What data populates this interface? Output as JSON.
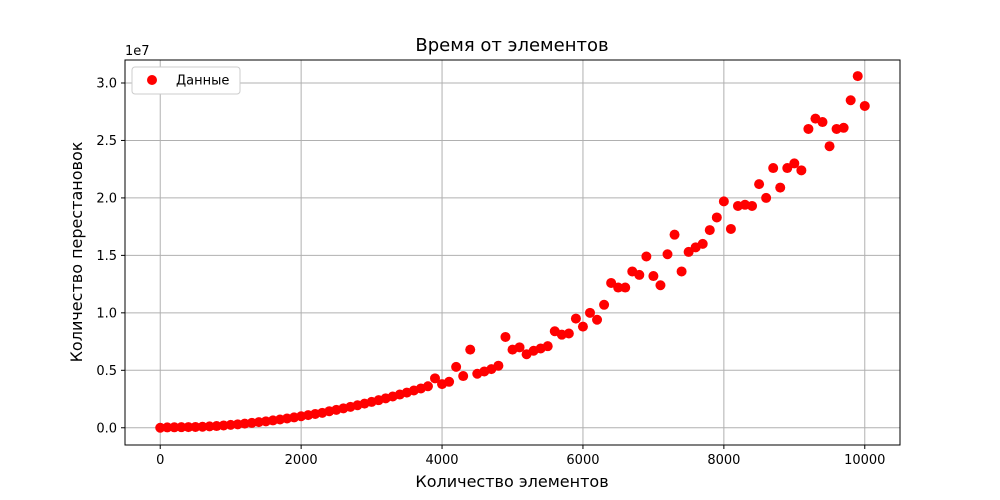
{
  "chart_data": {
    "type": "scatter",
    "title": "Время от элементов",
    "xlabel": "Количество элементов",
    "ylabel": "Количество перестановок",
    "y_scale_label": "1e7",
    "xlim": [
      -500,
      10500
    ],
    "ylim": [
      -1.5,
      32.0
    ],
    "x_ticks": [
      0,
      2000,
      4000,
      6000,
      8000,
      10000
    ],
    "x_tick_labels": [
      "0",
      "2000",
      "4000",
      "6000",
      "8000",
      "10000"
    ],
    "y_ticks": [
      0.0,
      5.0,
      10.0,
      15.0,
      20.0,
      25.0,
      30.0
    ],
    "y_tick_labels": [
      "0.0",
      "0.5",
      "1.0",
      "1.5",
      "2.0",
      "2.5",
      "3.0"
    ],
    "grid": true,
    "legend_position": "top-left",
    "colors": {
      "points": "#ff0000",
      "grid": "#b0b0b0",
      "axes": "#000000"
    },
    "series": [
      {
        "name": "Данные",
        "x": [
          0,
          100,
          200,
          300,
          400,
          500,
          600,
          700,
          800,
          900,
          1000,
          1100,
          1200,
          1300,
          1400,
          1500,
          1600,
          1700,
          1800,
          1900,
          2000,
          2100,
          2200,
          2300,
          2400,
          2500,
          2600,
          2700,
          2800,
          2900,
          3000,
          3100,
          3200,
          3300,
          3400,
          3500,
          3600,
          3700,
          3800,
          3900,
          4000,
          4100,
          4200,
          4300,
          4400,
          4500,
          4600,
          4700,
          4800,
          4900,
          5000,
          5100,
          5200,
          5300,
          5400,
          5500,
          5600,
          5700,
          5800,
          5900,
          6000,
          6100,
          6200,
          6300,
          6400,
          6500,
          6600,
          6700,
          6800,
          6900,
          7000,
          7100,
          7200,
          7300,
          7400,
          7500,
          7600,
          7700,
          7800,
          7900,
          8000,
          8100,
          8200,
          8300,
          8400,
          8500,
          8600,
          8700,
          8800,
          8900,
          9000,
          9100,
          9200,
          9300,
          9400,
          9500,
          9600,
          9700,
          9800,
          9900,
          10000
        ],
        "y": [
          0.0,
          0.03,
          0.04,
          0.05,
          0.06,
          0.07,
          0.09,
          0.12,
          0.15,
          0.2,
          0.25,
          0.3,
          0.36,
          0.42,
          0.49,
          0.56,
          0.64,
          0.72,
          0.81,
          0.9,
          1.0,
          1.1,
          1.2,
          1.3,
          1.44,
          1.56,
          1.69,
          1.82,
          1.96,
          2.1,
          2.25,
          2.4,
          2.56,
          2.72,
          2.89,
          3.06,
          3.24,
          3.42,
          3.61,
          4.3,
          3.8,
          4.0,
          5.3,
          4.5,
          6.8,
          4.7,
          4.9,
          5.1,
          5.4,
          7.9,
          6.8,
          7.0,
          6.4,
          6.7,
          6.9,
          7.1,
          8.4,
          8.1,
          8.2,
          9.5,
          8.8,
          10.0,
          9.4,
          10.7,
          12.6,
          12.2,
          12.2,
          13.6,
          13.3,
          14.9,
          13.2,
          12.4,
          15.1,
          16.8,
          13.6,
          15.3,
          15.7,
          16.0,
          17.2,
          18.3,
          19.7,
          17.3,
          19.3,
          19.4,
          19.3,
          21.2,
          20.0,
          22.6,
          20.9,
          22.6,
          23.0,
          22.4,
          26.0,
          26.9,
          26.6,
          24.5,
          26.0,
          26.1,
          28.5,
          30.6,
          28.0
        ]
      }
    ]
  }
}
